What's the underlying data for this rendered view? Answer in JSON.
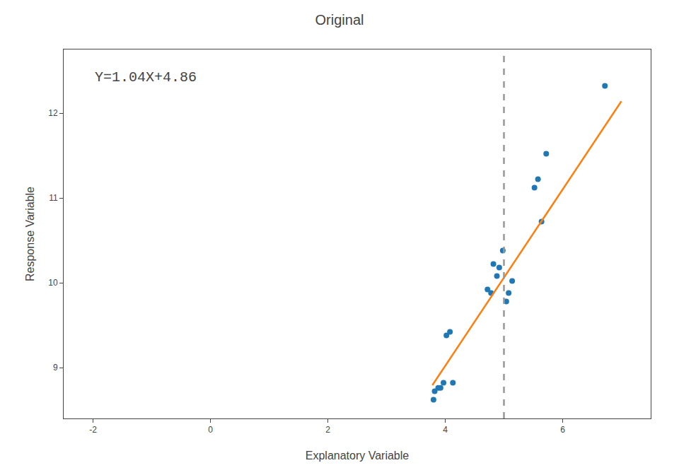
{
  "chart_data": {
    "type": "scatter",
    "title": "Original",
    "annotations": [
      "Y=1.04X+4.86"
    ],
    "xlabel": "Explanatory Variable",
    "ylabel": "Response Variable",
    "series": [
      {
        "type": "scatter",
        "marker": "circle",
        "x": [
          3.8,
          3.82,
          3.88,
          3.92,
          3.97,
          4.02,
          4.08,
          4.13,
          4.72,
          4.78,
          4.82,
          4.88,
          4.92,
          4.98,
          5.04,
          5.08,
          5.14,
          5.52,
          5.58,
          5.64,
          5.72,
          6.72
        ],
        "values": [
          8.62,
          8.72,
          8.76,
          8.76,
          8.82,
          9.38,
          9.42,
          8.82,
          9.92,
          9.88,
          10.22,
          10.08,
          10.18,
          10.38,
          9.78,
          9.88,
          10.02,
          11.12,
          11.22,
          10.72,
          11.52,
          12.32
        ]
      },
      {
        "type": "line",
        "line_style": "solid",
        "x": [
          3.78,
          7.0
        ],
        "values": [
          8.7912,
          12.14
        ]
      },
      {
        "type": "line",
        "line_style": "dashed",
        "color": "#989898",
        "x": [
          5.0,
          5.0
        ],
        "values": [
          8.4,
          12.75
        ]
      }
    ],
    "xlim": [
      -2.5,
      7.5
    ],
    "ylim": [
      8.4,
      12.75
    ],
    "xticks": [
      -2,
      0,
      2,
      4,
      6
    ],
    "yticks": [
      9,
      10,
      11,
      12
    ],
    "grid": false
  }
}
